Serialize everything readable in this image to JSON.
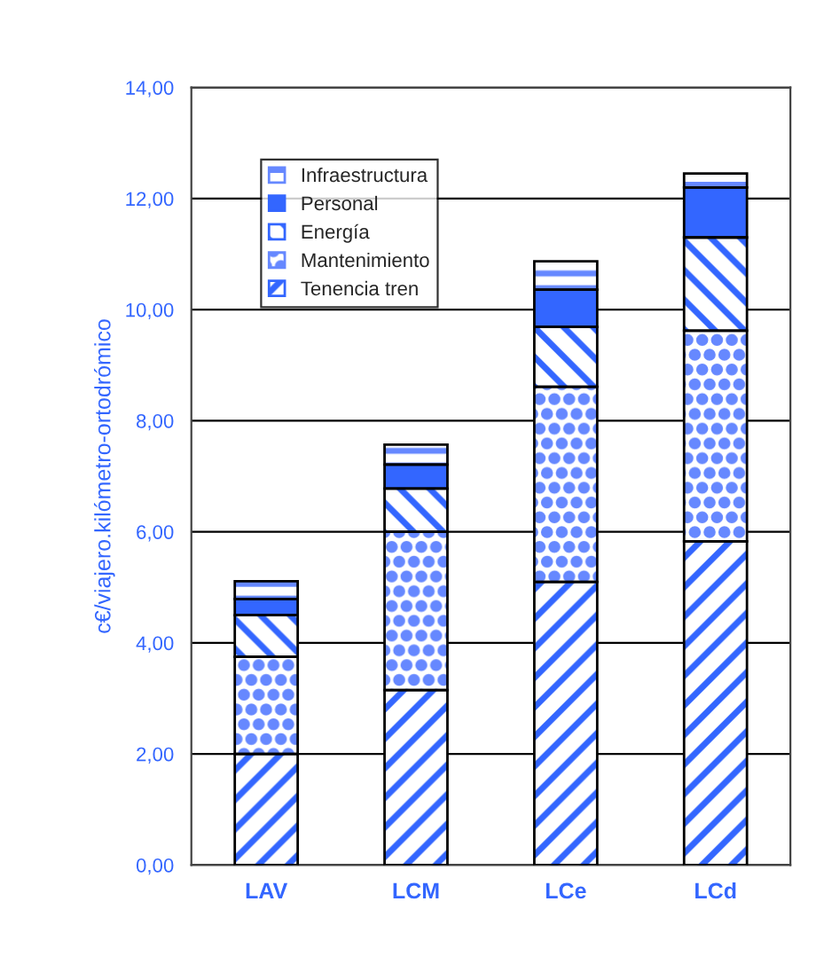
{
  "chart_data": {
    "type": "bar",
    "stacked": true,
    "ylabel": "c€/viajero.kilómetro-ortodrómico",
    "categories": [
      "LAV",
      "LCM",
      "LCe",
      "LCd"
    ],
    "series": [
      {
        "name": "Tenencia tren",
        "color": "#3366ff",
        "values": [
          2.0,
          3.15,
          5.1,
          5.83
        ]
      },
      {
        "name": "Mantenimiento",
        "color": "#6688ff",
        "values": [
          1.75,
          2.85,
          3.51,
          3.79
        ]
      },
      {
        "name": "Energía",
        "color": "#3366ff",
        "values": [
          0.75,
          0.78,
          1.08,
          1.68
        ]
      },
      {
        "name": "Personal",
        "color": "#3366ff",
        "values": [
          0.29,
          0.43,
          0.67,
          0.9
        ]
      },
      {
        "name": "Infraestructura",
        "color": "#6688ff",
        "values": [
          0.32,
          0.36,
          0.51,
          0.25
        ]
      }
    ],
    "ylim": [
      0,
      14
    ],
    "yticks": [
      {
        "value": 0,
        "label": "0,00"
      },
      {
        "value": 2,
        "label": "2,00"
      },
      {
        "value": 4,
        "label": "4,00"
      },
      {
        "value": 6,
        "label": "6,00"
      },
      {
        "value": 8,
        "label": "8,00"
      },
      {
        "value": 10,
        "label": "10,00"
      },
      {
        "value": 12,
        "label": "12,00"
      },
      {
        "value": 14,
        "label": "14,00"
      }
    ],
    "grid": "y",
    "legend": "top left"
  }
}
